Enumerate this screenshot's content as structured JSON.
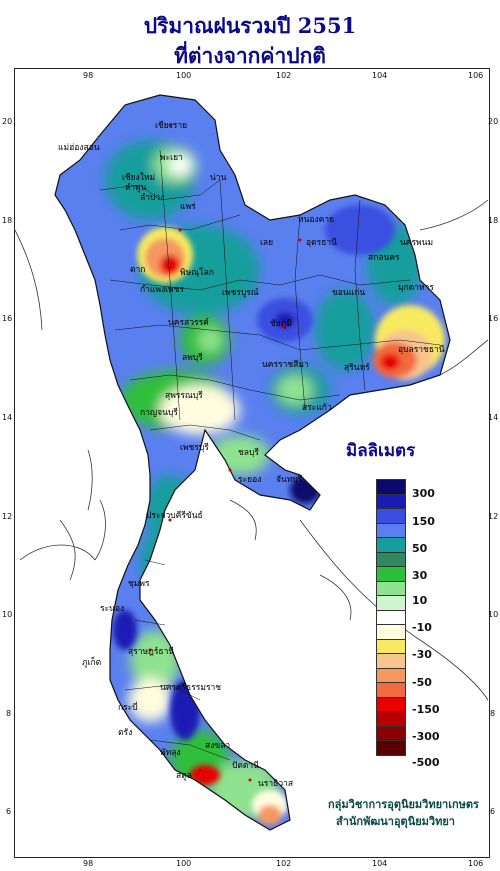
{
  "title_line1": "ปริมาณฝนรวมปี 2551",
  "title_line2": "ที่ต่างจากค่าปกติ",
  "legend": {
    "title": "มิลลิเมตร",
    "colors": [
      "#0a0a6e",
      "#1a1ab4",
      "#3a4fe0",
      "#5a7fef",
      "#179e9c",
      "#2e8a5e",
      "#2ebf3a",
      "#8fe28f",
      "#cff5cf",
      "#ffffff",
      "#fffde0",
      "#f7ea60",
      "#f7c58e",
      "#f49860",
      "#f26a3e",
      "#e80000",
      "#b80000",
      "#8a0000",
      "#5a0000"
    ],
    "labels": [
      "300",
      "150",
      "50",
      "30",
      "10",
      "-10",
      "-30",
      "-50",
      "-150",
      "-300",
      "-500"
    ]
  },
  "axes": {
    "x_ticks": [
      "98",
      "100",
      "102",
      "104",
      "106"
    ],
    "y_ticks": [
      "20",
      "18",
      "16",
      "14",
      "12",
      "10",
      "8",
      "6"
    ]
  },
  "credit_line1": "กลุ่มวิชาการอุตุนิยมวิทยาเกษตร",
  "credit_line2": "สำนักพัฒนาอุตุนิยมวิทยา",
  "places": [
    {
      "name": "เชียงราย"
    },
    {
      "name": "เชียงใหม่"
    },
    {
      "name": "ลำพูน"
    },
    {
      "name": "ลำปาง"
    },
    {
      "name": "น่าน"
    },
    {
      "name": "แพร่"
    },
    {
      "name": "ตาก"
    },
    {
      "name": "พิษณุโลก"
    },
    {
      "name": "กำแพงเพชร"
    },
    {
      "name": "เพชรบูรณ์"
    },
    {
      "name": "นครสวรรค์"
    },
    {
      "name": "หนองคาย"
    },
    {
      "name": "อุดรธานี"
    },
    {
      "name": "นครพนม"
    },
    {
      "name": "สกลนคร"
    },
    {
      "name": "มุกดาหาร"
    },
    {
      "name": "ขอนแก่น"
    },
    {
      "name": "เลย"
    },
    {
      "name": "ชัยภูมิ"
    },
    {
      "name": "นครราชสีมา"
    },
    {
      "name": "สุรินทร์"
    },
    {
      "name": "อุบลราชธานี"
    },
    {
      "name": "ลพบุรี"
    },
    {
      "name": "สุพรรณบุรี"
    },
    {
      "name": "กาญจนบุรี"
    },
    {
      "name": "สระแก้ว"
    },
    {
      "name": "ชลบุรี"
    },
    {
      "name": "ระยอง"
    },
    {
      "name": "จันทบุรี"
    },
    {
      "name": "เพชรบุรี"
    },
    {
      "name": "ประจวบคีรีขันธ์"
    },
    {
      "name": "ชุมพร"
    },
    {
      "name": "ระนอง"
    },
    {
      "name": "สุราษฎร์ธานี"
    },
    {
      "name": "นครศรีธรรมราช"
    },
    {
      "name": "ภูเก็ต"
    },
    {
      "name": "กระบี่"
    },
    {
      "name": "ตรัง"
    },
    {
      "name": "สงขลา"
    },
    {
      "name": "ปัตตานี"
    },
    {
      "name": "นราธิวาส"
    },
    {
      "name": "พัทลุง"
    },
    {
      "name": "สตูล"
    },
    {
      "name": "แม่ฮ่องสอน"
    },
    {
      "name": "พะเยา"
    }
  ]
}
